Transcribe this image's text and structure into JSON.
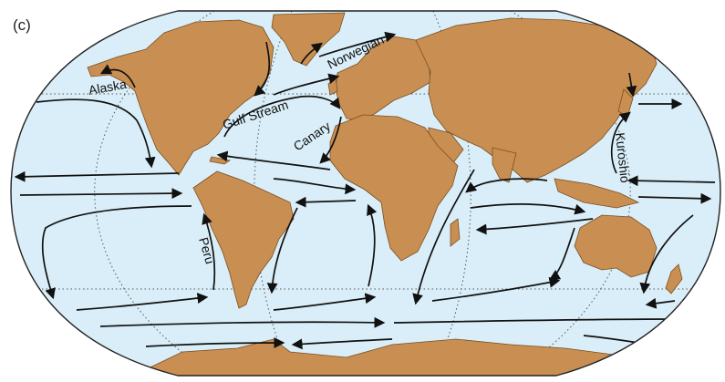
{
  "panel_label": "(c)",
  "colors": {
    "ocean": "#d9eef8",
    "land": "#c98f52",
    "coast": "#7a4e22",
    "border": "#222222",
    "arrow": "#111111",
    "grid": "#444444"
  },
  "currents": {
    "alaska": "Alaska",
    "gulf_stream": "Gulf Stream",
    "canary": "Canary",
    "norwegian": "Norwegian",
    "kuroshio": "Kuroshio",
    "peru": "Peru"
  }
}
